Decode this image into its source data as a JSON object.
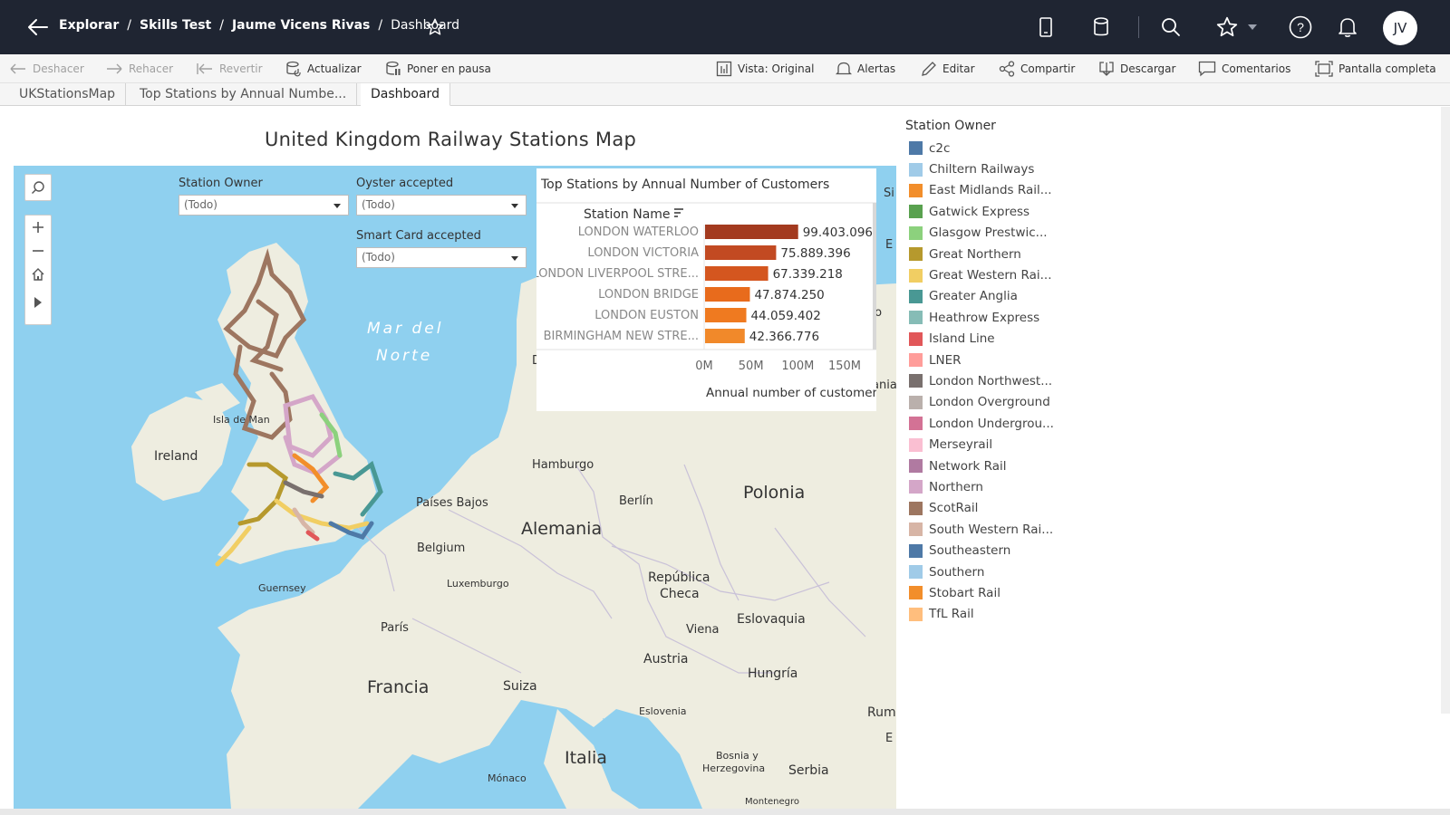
{
  "breadcrumb": {
    "items": [
      "Explorar",
      "Skills Test",
      "Jaume Vicens Rivas"
    ],
    "current": "Dashboard"
  },
  "user": {
    "initials": "JV"
  },
  "toolbar": {
    "undo": "Deshacer",
    "redo": "Rehacer",
    "revert": "Revertir",
    "refresh": "Actualizar",
    "pause": "Poner en pausa",
    "view": "Vista: Original",
    "alerts": "Alertas",
    "edit": "Editar",
    "share": "Compartir",
    "download": "Descargar",
    "comments": "Comentarios",
    "fullscreen": "Pantalla completa"
  },
  "tabs": [
    "UKStationsMap",
    "Top Stations by Annual Numbe...",
    "Dashboard"
  ],
  "dashboard": {
    "title": "United Kingdom Railway Stations Map"
  },
  "filters": {
    "station_owner": {
      "label": "Station Owner",
      "value": "(Todo)"
    },
    "oyster": {
      "label": "Oyster accepted",
      "value": "(Todo)"
    },
    "smart_card": {
      "label": "Smart Card accepted",
      "value": "(Todo)"
    }
  },
  "map": {
    "labels": {
      "sea": "Mar del Norte",
      "sea_line1": "Mar del",
      "sea_line2": "Norte",
      "ireland": "Ireland",
      "isle_of_man": "Isla de Man",
      "guernsey": "Guernsey",
      "hamburg": "Hamburgo",
      "berlin": "Berlín",
      "poland": "Polonia",
      "germany": "Alemania",
      "netherlands": "Países Bajos",
      "belgium": "Belgium",
      "luxembourg": "Luxemburgo",
      "czech1": "República",
      "czech2": "Checa",
      "slovakia": "Eslovaquia",
      "vienna": "Viena",
      "austria": "Austria",
      "hungary": "Hungría",
      "paris": "París",
      "france": "Francia",
      "switzerland": "Suiza",
      "slovenia": "Eslovenia",
      "bosnia1": "Bosnia y",
      "bosnia2": "Herzegovina",
      "serbia": "Serbia",
      "italy": "Italia",
      "monaco": "Mónaco",
      "romania": "Rum",
      "montenegro": "Montenegro",
      "der": "Der",
      "to": "to",
      "ania": "ania",
      "si": "Si",
      "e1": "E",
      "e2": "E"
    }
  },
  "chart_data": {
    "type": "bar",
    "title": "Top Stations by Annual Number of Customers",
    "xlabel": "Annual number of customers",
    "ylabel": "Station Name",
    "categories": [
      "LONDON WATERLOO",
      "LONDON VICTORIA",
      "LONDON LIVERPOOL STRE...",
      "LONDON BRIDGE",
      "LONDON EUSTON",
      "BIRMINGHAM NEW STRE..."
    ],
    "values": [
      99403096,
      75889396,
      67339218,
      47874250,
      44059402,
      42366776
    ],
    "value_labels": [
      "99.403.096",
      "75.889.396",
      "67.339.218",
      "47.874.250",
      "44.059.402",
      "42.366.776"
    ],
    "bar_colors": [
      "#a33a1f",
      "#c24a22",
      "#d4561f",
      "#e86b1c",
      "#ef7a20",
      "#f1892a"
    ],
    "xlim": [
      0,
      150000000
    ],
    "x_ticks": [
      0,
      50000000,
      100000000,
      150000000
    ],
    "x_tick_labels": [
      "0M",
      "50M",
      "100M",
      "150M"
    ]
  },
  "legend": {
    "title": "Station Owner",
    "items": [
      {
        "label": "c2c",
        "color": "#4e79a7"
      },
      {
        "label": "Chiltern Railways",
        "color": "#a0cbe8"
      },
      {
        "label": "East Midlands Rail...",
        "color": "#f28e2b"
      },
      {
        "label": "Gatwick Express",
        "color": "#59a14f"
      },
      {
        "label": "Glasgow Prestwic...",
        "color": "#8cd17d"
      },
      {
        "label": "Great Northern",
        "color": "#b6992d"
      },
      {
        "label": "Great Western Rai...",
        "color": "#f1ce63"
      },
      {
        "label": "Greater Anglia",
        "color": "#499894"
      },
      {
        "label": "Heathrow Express",
        "color": "#86bcb6"
      },
      {
        "label": "Island Line",
        "color": "#e15759"
      },
      {
        "label": "LNER",
        "color": "#ff9d9a"
      },
      {
        "label": "London Northwest...",
        "color": "#79706e"
      },
      {
        "label": "London Overground",
        "color": "#bab0ac"
      },
      {
        "label": "London Undergrou...",
        "color": "#d37295"
      },
      {
        "label": "Merseyrail",
        "color": "#fabfd2"
      },
      {
        "label": "Network Rail",
        "color": "#b07aa1"
      },
      {
        "label": "Northern",
        "color": "#d4a6c8"
      },
      {
        "label": "ScotRail",
        "color": "#9d7660"
      },
      {
        "label": "South Western Rai...",
        "color": "#d7b5a6"
      },
      {
        "label": "Southeastern",
        "color": "#4e79a7"
      },
      {
        "label": "Southern",
        "color": "#a0cbe8"
      },
      {
        "label": "Stobart Rail",
        "color": "#f28e2b"
      },
      {
        "label": "TfL Rail",
        "color": "#ffbe7d"
      }
    ]
  },
  "colors": {
    "topbar": "#1f2532",
    "sea": "#8fd0ef",
    "land": "#eeede0"
  }
}
